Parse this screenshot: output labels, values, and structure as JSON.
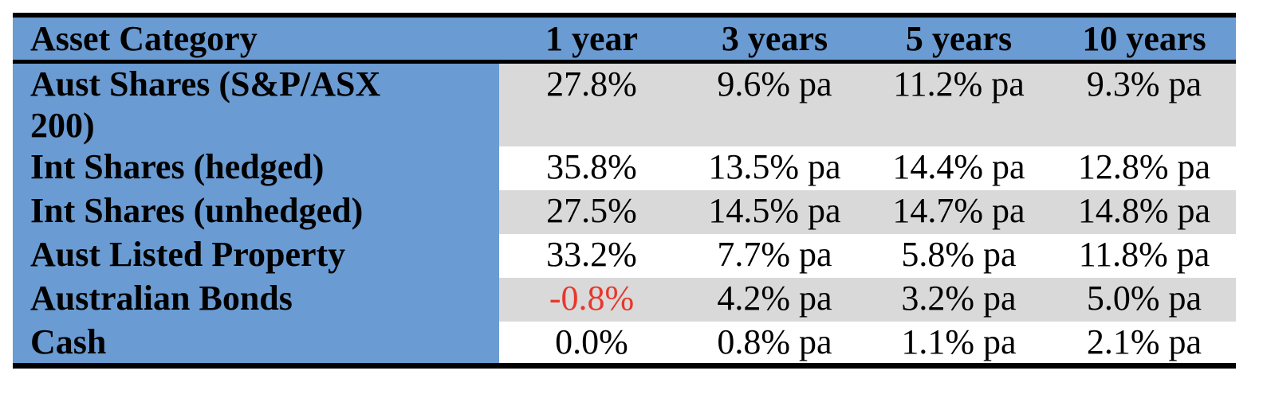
{
  "table": {
    "header": [
      "Asset Category",
      "1 year",
      "3 years",
      "5 years",
      "10 years"
    ],
    "rows": [
      [
        "Aust Shares (S&P/ASX 200)",
        "27.8%",
        "9.6% pa",
        "11.2% pa",
        "9.3% pa"
      ],
      [
        "Int Shares (hedged)",
        "35.8%",
        "13.5% pa",
        "14.4% pa",
        "12.8% pa"
      ],
      [
        "Int Shares (unhedged)",
        "27.5%",
        "14.5% pa",
        "14.7% pa",
        "14.8% pa"
      ],
      [
        "Aust Listed Property",
        "33.2%",
        "7.7% pa",
        "5.8% pa",
        "11.8% pa"
      ],
      [
        "Australian Bonds",
        "-0.8%",
        "4.2% pa",
        "3.2% pa",
        "5.0% pa"
      ],
      [
        "Cash",
        "0.0%",
        "0.8% pa",
        "1.1% pa",
        "2.1% pa"
      ]
    ]
  }
}
